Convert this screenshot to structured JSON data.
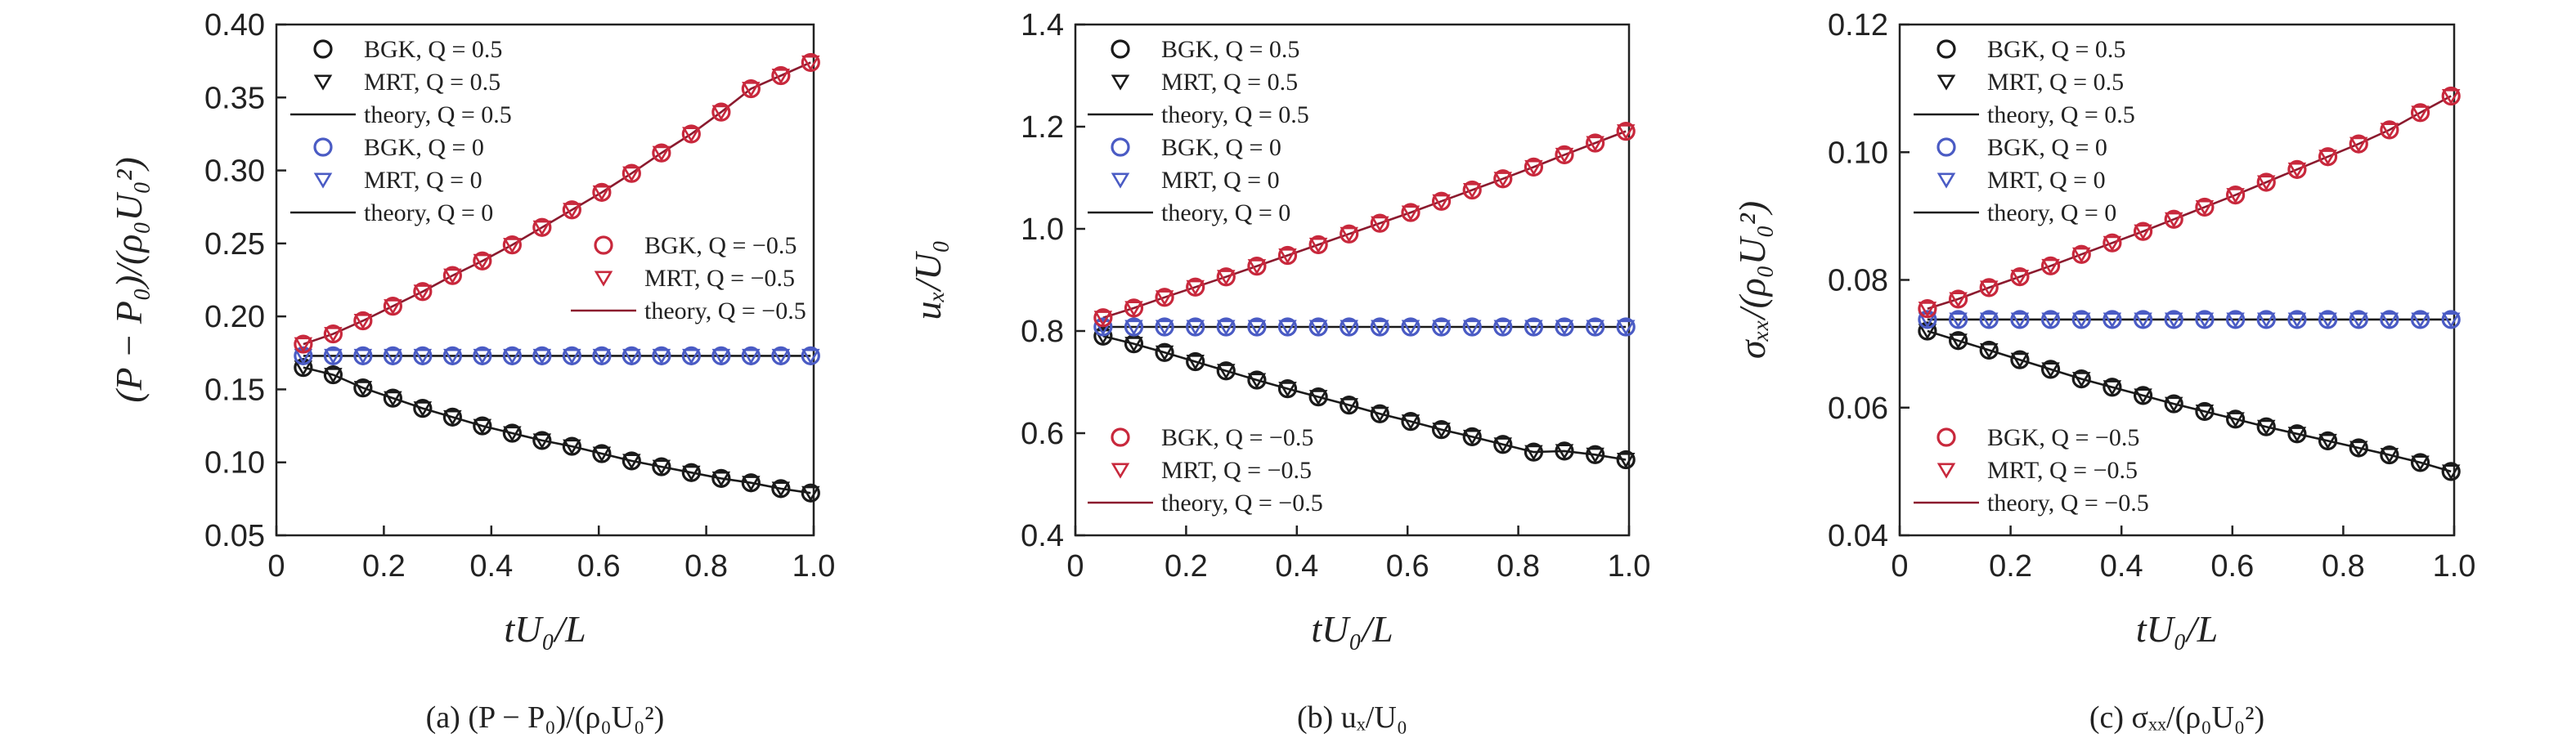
{
  "chart_data": [
    {
      "type": "scatter",
      "panel": "a",
      "caption": "(a) (P − P₀)/(ρ₀U₀²)",
      "xlabel": "tU₀/L",
      "ylabel": "(P − P₀)/(ρ₀U₀²)",
      "xlim": [
        0,
        1.0
      ],
      "ylim": [
        0.05,
        0.4
      ],
      "xticks": [
        "0",
        "0.2",
        "0.4",
        "0.6",
        "0.8",
        "1.0"
      ],
      "yticks": [
        "0.05",
        "0.10",
        "0.15",
        "0.20",
        "0.25",
        "0.30",
        "0.35",
        "0.40"
      ],
      "x": [
        0.05,
        0.1056,
        0.1611,
        0.2167,
        0.2722,
        0.3278,
        0.3833,
        0.4389,
        0.4944,
        0.55,
        0.6056,
        0.6611,
        0.7167,
        0.7722,
        0.8278,
        0.8833,
        0.9389,
        0.9944
      ],
      "series": [
        {
          "name": "BGK, Q = 0.5",
          "marker": "circle",
          "color": "#1a1a1a",
          "values": [
            0.165,
            0.16,
            0.151,
            0.144,
            0.137,
            0.131,
            0.125,
            0.12,
            0.115,
            0.111,
            0.106,
            0.101,
            0.097,
            0.093,
            0.089,
            0.086,
            0.082,
            0.079
          ]
        },
        {
          "name": "MRT, Q = 0.5",
          "marker": "triangle",
          "color": "#1a1a1a",
          "values": [
            0.165,
            0.16,
            0.151,
            0.144,
            0.137,
            0.131,
            0.125,
            0.12,
            0.115,
            0.111,
            0.106,
            0.101,
            0.097,
            0.093,
            0.089,
            0.086,
            0.082,
            0.079
          ]
        },
        {
          "name": "theory, Q = 0.5",
          "marker": "line",
          "color": "#1a1a1a",
          "values": [
            0.165,
            0.16,
            0.151,
            0.144,
            0.137,
            0.131,
            0.125,
            0.12,
            0.115,
            0.111,
            0.106,
            0.101,
            0.097,
            0.093,
            0.089,
            0.086,
            0.082,
            0.079
          ]
        },
        {
          "name": "BGK, Q = 0",
          "marker": "circle",
          "color": "#4a5bc4",
          "values": [
            0.173,
            0.173,
            0.173,
            0.173,
            0.173,
            0.173,
            0.173,
            0.173,
            0.173,
            0.173,
            0.173,
            0.173,
            0.173,
            0.173,
            0.173,
            0.173,
            0.173,
            0.173
          ]
        },
        {
          "name": "MRT, Q = 0",
          "marker": "triangle",
          "color": "#4a5bc4",
          "values": [
            0.173,
            0.173,
            0.173,
            0.173,
            0.173,
            0.173,
            0.173,
            0.173,
            0.173,
            0.173,
            0.173,
            0.173,
            0.173,
            0.173,
            0.173,
            0.173,
            0.173,
            0.173
          ]
        },
        {
          "name": "theory, Q = 0",
          "marker": "line",
          "color": "#1a1a1a",
          "values": [
            0.173,
            0.173,
            0.173,
            0.173,
            0.173,
            0.173,
            0.173,
            0.173,
            0.173,
            0.173,
            0.173,
            0.173,
            0.173,
            0.173,
            0.173,
            0.173,
            0.173,
            0.173
          ]
        },
        {
          "name": "BGK, Q = −0.5",
          "marker": "circle",
          "color": "#c8283c",
          "values": [
            0.181,
            0.188,
            0.197,
            0.207,
            0.217,
            0.228,
            0.238,
            0.249,
            0.261,
            0.273,
            0.285,
            0.298,
            0.312,
            0.325,
            0.34,
            0.356,
            0.365,
            0.374
          ]
        },
        {
          "name": "MRT, Q = −0.5",
          "marker": "triangle",
          "color": "#c8283c",
          "values": [
            0.181,
            0.188,
            0.197,
            0.207,
            0.217,
            0.228,
            0.238,
            0.249,
            0.261,
            0.273,
            0.285,
            0.298,
            0.312,
            0.325,
            0.34,
            0.356,
            0.365,
            0.374
          ]
        },
        {
          "name": "theory, Q = −0.5",
          "marker": "line",
          "color": "#8b1a2e",
          "values": [
            0.181,
            0.188,
            0.197,
            0.207,
            0.217,
            0.228,
            0.238,
            0.249,
            0.261,
            0.273,
            0.285,
            0.298,
            0.312,
            0.325,
            0.34,
            0.356,
            0.365,
            0.374
          ]
        }
      ],
      "legend_groups": [
        {
          "position": "top-left",
          "items": [
            0,
            1,
            2,
            3,
            4,
            5
          ]
        },
        {
          "position": "center",
          "items": [
            6,
            7,
            8
          ]
        }
      ]
    },
    {
      "type": "scatter",
      "panel": "b",
      "caption": "(b) uₓ/U₀",
      "xlabel": "tU₀/L",
      "ylabel": "uₓ/U₀",
      "xlim": [
        0,
        1.0
      ],
      "ylim": [
        0.4,
        1.4
      ],
      "xticks": [
        "0",
        "0.2",
        "0.4",
        "0.6",
        "0.8",
        "1.0"
      ],
      "yticks": [
        "0.4",
        "0.6",
        "0.8",
        "1.0",
        "1.2",
        "1.4"
      ],
      "x": [
        0.05,
        0.1056,
        0.1611,
        0.2167,
        0.2722,
        0.3278,
        0.3833,
        0.4389,
        0.4944,
        0.55,
        0.6056,
        0.6611,
        0.7167,
        0.7722,
        0.8278,
        0.8833,
        0.9389,
        0.9944
      ],
      "series": [
        {
          "name": "BGK, Q = 0.5",
          "marker": "circle",
          "color": "#1a1a1a",
          "values": [
            0.79,
            0.775,
            0.758,
            0.74,
            0.722,
            0.704,
            0.687,
            0.671,
            0.655,
            0.638,
            0.623,
            0.607,
            0.593,
            0.578,
            0.563,
            0.565,
            0.558,
            0.548
          ]
        },
        {
          "name": "MRT, Q = 0.5",
          "marker": "triangle",
          "color": "#1a1a1a",
          "values": [
            0.79,
            0.775,
            0.758,
            0.74,
            0.722,
            0.704,
            0.687,
            0.671,
            0.655,
            0.638,
            0.623,
            0.607,
            0.593,
            0.578,
            0.563,
            0.565,
            0.558,
            0.548
          ]
        },
        {
          "name": "theory, Q = 0.5",
          "marker": "line",
          "color": "#1a1a1a",
          "values": [
            0.79,
            0.775,
            0.758,
            0.74,
            0.722,
            0.704,
            0.687,
            0.671,
            0.655,
            0.638,
            0.623,
            0.607,
            0.593,
            0.578,
            0.563,
            0.565,
            0.558,
            0.548
          ]
        },
        {
          "name": "BGK, Q = 0",
          "marker": "circle",
          "color": "#4a5bc4",
          "values": [
            0.808,
            0.808,
            0.808,
            0.808,
            0.808,
            0.808,
            0.808,
            0.808,
            0.808,
            0.808,
            0.808,
            0.808,
            0.808,
            0.808,
            0.808,
            0.808,
            0.808,
            0.808
          ]
        },
        {
          "name": "MRT, Q = 0",
          "marker": "triangle",
          "color": "#4a5bc4",
          "values": [
            0.808,
            0.808,
            0.808,
            0.808,
            0.808,
            0.808,
            0.808,
            0.808,
            0.808,
            0.808,
            0.808,
            0.808,
            0.808,
            0.808,
            0.808,
            0.808,
            0.808,
            0.808
          ]
        },
        {
          "name": "theory, Q = 0",
          "marker": "line",
          "color": "#1a1a1a",
          "values": [
            0.808,
            0.808,
            0.808,
            0.808,
            0.808,
            0.808,
            0.808,
            0.808,
            0.808,
            0.808,
            0.808,
            0.808,
            0.808,
            0.808,
            0.808,
            0.808,
            0.808,
            0.808
          ]
        },
        {
          "name": "BGK, Q = −0.5",
          "marker": "circle",
          "color": "#c8283c",
          "values": [
            0.826,
            0.845,
            0.866,
            0.886,
            0.906,
            0.927,
            0.948,
            0.969,
            0.99,
            1.011,
            1.032,
            1.054,
            1.076,
            1.098,
            1.121,
            1.145,
            1.168,
            1.191
          ]
        },
        {
          "name": "MRT, Q = −0.5",
          "marker": "triangle",
          "color": "#c8283c",
          "values": [
            0.826,
            0.845,
            0.866,
            0.886,
            0.906,
            0.927,
            0.948,
            0.969,
            0.99,
            1.011,
            1.032,
            1.054,
            1.076,
            1.098,
            1.121,
            1.145,
            1.168,
            1.191
          ]
        },
        {
          "name": "theory, Q = −0.5",
          "marker": "line",
          "color": "#8b1a2e",
          "values": [
            0.826,
            0.845,
            0.866,
            0.886,
            0.906,
            0.927,
            0.948,
            0.969,
            0.99,
            1.011,
            1.032,
            1.054,
            1.076,
            1.098,
            1.121,
            1.145,
            1.168,
            1.191
          ]
        }
      ],
      "legend_groups": [
        {
          "position": "top-left",
          "items": [
            0,
            1,
            2,
            3,
            4,
            5
          ]
        },
        {
          "position": "bottom-left",
          "items": [
            6,
            7,
            8
          ]
        }
      ]
    },
    {
      "type": "scatter",
      "panel": "c",
      "caption": "(c) σₓₓ/(ρ₀U₀²)",
      "xlabel": "tU₀/L",
      "ylabel": "σₓₓ/(ρ₀U₀²)",
      "xlim": [
        0,
        1.0
      ],
      "ylim": [
        0.04,
        0.12
      ],
      "xticks": [
        "0",
        "0.2",
        "0.4",
        "0.6",
        "0.8",
        "1.0"
      ],
      "yticks": [
        "0.04",
        "0.06",
        "0.08",
        "0.10",
        "0.12"
      ],
      "x": [
        0.05,
        0.1056,
        0.1611,
        0.2167,
        0.2722,
        0.3278,
        0.3833,
        0.4389,
        0.4944,
        0.55,
        0.6056,
        0.6611,
        0.7167,
        0.7722,
        0.8278,
        0.8833,
        0.9389,
        0.9944
      ],
      "series": [
        {
          "name": "BGK, Q = 0.5",
          "marker": "circle",
          "color": "#1a1a1a",
          "values": [
            0.072,
            0.0705,
            0.069,
            0.0675,
            0.066,
            0.0645,
            0.0632,
            0.0619,
            0.0606,
            0.0594,
            0.0582,
            0.057,
            0.0559,
            0.0548,
            0.0537,
            0.0526,
            0.0514,
            0.05
          ]
        },
        {
          "name": "MRT, Q = 0.5",
          "marker": "triangle",
          "color": "#1a1a1a",
          "values": [
            0.072,
            0.0705,
            0.069,
            0.0675,
            0.066,
            0.0645,
            0.0632,
            0.0619,
            0.0606,
            0.0594,
            0.0582,
            0.057,
            0.0559,
            0.0548,
            0.0537,
            0.0526,
            0.0514,
            0.05
          ]
        },
        {
          "name": "theory, Q = 0.5",
          "marker": "line",
          "color": "#1a1a1a",
          "values": [
            0.072,
            0.0705,
            0.069,
            0.0675,
            0.066,
            0.0645,
            0.0632,
            0.0619,
            0.0606,
            0.0594,
            0.0582,
            0.057,
            0.0559,
            0.0548,
            0.0537,
            0.0526,
            0.0514,
            0.05
          ]
        },
        {
          "name": "BGK, Q = 0",
          "marker": "circle",
          "color": "#4a5bc4",
          "values": [
            0.0738,
            0.0738,
            0.0738,
            0.0738,
            0.0738,
            0.0738,
            0.0738,
            0.0738,
            0.0738,
            0.0738,
            0.0738,
            0.0738,
            0.0738,
            0.0738,
            0.0738,
            0.0738,
            0.0738,
            0.0738
          ]
        },
        {
          "name": "MRT, Q = 0",
          "marker": "triangle",
          "color": "#4a5bc4",
          "values": [
            0.0738,
            0.0738,
            0.0738,
            0.0738,
            0.0738,
            0.0738,
            0.0738,
            0.0738,
            0.0738,
            0.0738,
            0.0738,
            0.0738,
            0.0738,
            0.0738,
            0.0738,
            0.0738,
            0.0738,
            0.0738
          ]
        },
        {
          "name": "theory, Q = 0",
          "marker": "line",
          "color": "#1a1a1a",
          "values": [
            0.0738,
            0.0738,
            0.0738,
            0.0738,
            0.0738,
            0.0738,
            0.0738,
            0.0738,
            0.0738,
            0.0738,
            0.0738,
            0.0738,
            0.0738,
            0.0738,
            0.0738,
            0.0738,
            0.0738,
            0.0738
          ]
        },
        {
          "name": "BGK, Q = −0.5",
          "marker": "circle",
          "color": "#c8283c",
          "values": [
            0.0755,
            0.077,
            0.0788,
            0.0805,
            0.0822,
            0.084,
            0.0858,
            0.0876,
            0.0895,
            0.0914,
            0.0933,
            0.0953,
            0.0973,
            0.0993,
            0.1013,
            0.1035,
            0.1062,
            0.1088
          ]
        },
        {
          "name": "MRT, Q = −0.5",
          "marker": "triangle",
          "color": "#c8283c",
          "values": [
            0.0755,
            0.077,
            0.0788,
            0.0805,
            0.0822,
            0.084,
            0.0858,
            0.0876,
            0.0895,
            0.0914,
            0.0933,
            0.0953,
            0.0973,
            0.0993,
            0.1013,
            0.1035,
            0.1062,
            0.1088
          ]
        },
        {
          "name": "theory, Q = −0.5",
          "marker": "line",
          "color": "#8b1a2e",
          "values": [
            0.0755,
            0.077,
            0.0788,
            0.0805,
            0.0822,
            0.084,
            0.0858,
            0.0876,
            0.0895,
            0.0914,
            0.0933,
            0.0953,
            0.0973,
            0.0993,
            0.1013,
            0.1035,
            0.1062,
            0.1088
          ]
        }
      ],
      "legend_groups": [
        {
          "position": "top-left",
          "items": [
            0,
            1,
            2,
            3,
            4,
            5
          ]
        },
        {
          "position": "bottom-left",
          "items": [
            6,
            7,
            8
          ]
        }
      ]
    }
  ]
}
